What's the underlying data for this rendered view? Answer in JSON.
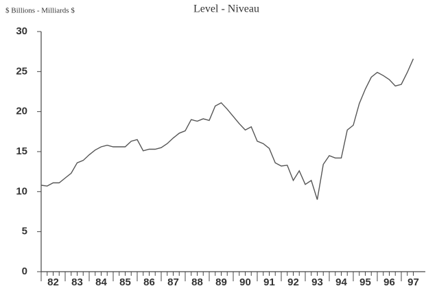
{
  "chart_data": {
    "type": "line",
    "title": "Level - Niveau",
    "y_label": "$ Billions - Milliards $",
    "categories": [
      "82",
      null,
      null,
      null,
      "83",
      null,
      null,
      null,
      "84",
      null,
      null,
      null,
      "85",
      null,
      null,
      null,
      "86",
      null,
      null,
      null,
      "87",
      null,
      null,
      null,
      "88",
      null,
      null,
      null,
      "89",
      null,
      null,
      null,
      "90",
      null,
      null,
      null,
      "91",
      null,
      null,
      null,
      "92",
      null,
      null,
      null,
      "93",
      null,
      null,
      null,
      "94",
      null,
      null,
      null,
      "95",
      null,
      null,
      null,
      "96",
      null,
      null,
      null,
      "97",
      null,
      null
    ],
    "series": [
      {
        "name": "Level",
        "color": "#555555",
        "values": [
          10.8,
          10.7,
          11.1,
          11.1,
          11.7,
          12.3,
          13.6,
          13.9,
          14.6,
          15.2,
          15.6,
          15.8,
          15.6,
          15.6,
          15.6,
          16.3,
          16.5,
          15.1,
          15.3,
          15.3,
          15.5,
          16.0,
          16.7,
          17.3,
          17.6,
          19.0,
          18.8,
          19.1,
          18.9,
          20.7,
          21.1,
          20.3,
          19.4,
          18.5,
          17.7,
          18.1,
          16.3,
          16.0,
          15.4,
          13.6,
          13.2,
          13.3,
          11.4,
          12.6,
          10.9,
          11.4,
          9.0,
          13.4,
          14.5,
          14.2,
          14.2,
          17.7,
          18.3,
          21.0,
          22.8,
          24.3,
          24.9,
          24.5,
          24.0,
          23.2,
          23.4,
          24.9,
          26.6
        ]
      }
    ],
    "ylim": [
      0,
      30
    ],
    "yticks": [
      0,
      5,
      10,
      15,
      20,
      25,
      30
    ],
    "grid": false
  }
}
